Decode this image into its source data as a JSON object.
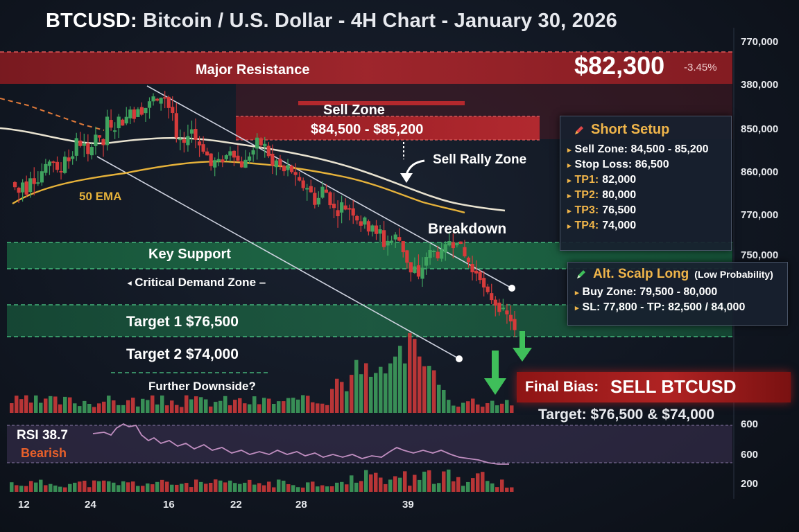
{
  "title": {
    "symbol": "BTCUSD:",
    "rest": "Bitcoin / U.S. Dollar - 4H Chart - January 30, 2026"
  },
  "price": {
    "value": "$82,300",
    "change": "-3.45%"
  },
  "y_axis_labels": [
    "770,000",
    "380,000",
    "850,000",
    "860,000",
    "770,000",
    "750,000",
    "600",
    "600",
    "200"
  ],
  "x_axis_labels": [
    "12",
    "24",
    "16",
    "22",
    "28",
    "39"
  ],
  "zones": {
    "major_resistance": "Major Resistance",
    "sell_zone_title": "Sell Zone",
    "sell_zone_range": "$84,500 - $85,200",
    "sell_rally": "Sell Rally Zone",
    "breakdown": "Breakdown",
    "key_support": "Key Support",
    "critical_demand": "Critical Demand Zone",
    "target1": "Target 1  $76,500",
    "target2": "Target 2  $74,000",
    "further": "Further Downside?",
    "ema": "50 EMA"
  },
  "short_setup": {
    "title": "Short Setup",
    "rows": [
      {
        "label": "Sell Zone:",
        "value": "84,500 - 85,200"
      },
      {
        "label": "Stop Loss:",
        "value": "86,500"
      },
      {
        "label": "TP1:",
        "value": "82,000"
      },
      {
        "label": "TP2:",
        "value": "80,000"
      },
      {
        "label": "TP3:",
        "value": "76,500"
      },
      {
        "label": "TP4:",
        "value": "74,000"
      }
    ]
  },
  "scalp_long": {
    "title": "Alt. Scalp Long",
    "note": "(Low Probability)",
    "rows": [
      "Buy Zone: 79,500 - 80,000",
      "SL: 77,800 - TP: 82,500 / 84,000"
    ]
  },
  "bias": {
    "label": "Final Bias:",
    "value": "SELL BTCUSD",
    "target": "Target: $76,500 & $74,000"
  },
  "rsi": {
    "label": "RSI 38.7",
    "state": "Bearish"
  },
  "colors": {
    "bull": "#3fa35f",
    "bear": "#d63b3b",
    "ema": "#e6b23a",
    "ma": "#e8e2d0",
    "resistance": "#a3222a",
    "support": "#1f6b47",
    "accent": "#f0b54a",
    "rsi": "#c08ec0"
  },
  "chart_data": {
    "type": "candlestick",
    "title": "BTCUSD: Bitcoin / U.S. Dollar - 4H Chart - January 30, 2026",
    "series": [
      {
        "name": "50 EMA",
        "type": "line"
      },
      {
        "name": "RSI 38.7",
        "type": "line"
      }
    ],
    "candles": [
      [
        96,
        95,
        94,
        96,
        94,
        97,
        96,
        96,
        98,
        99,
        100
      ],
      [
        100,
        98,
        98,
        101,
        100,
        101,
        104,
        103,
        103,
        101,
        103
      ],
      [
        105,
        104,
        103,
        108,
        106,
        106,
        108,
        107,
        108,
        110,
        108
      ],
      [
        110,
        109,
        110,
        111,
        112,
        111,
        112,
        112,
        110,
        109,
        104
      ],
      [
        104,
        103,
        105,
        106,
        104,
        103,
        102,
        101,
        99,
        100,
        100
      ],
      [
        100,
        101,
        102,
        101,
        100,
        99,
        100,
        101,
        102,
        104,
        103
      ],
      [
        103,
        101,
        99,
        100,
        99,
        98,
        99,
        98,
        97,
        96,
        95
      ],
      [
        95,
        94,
        92,
        93,
        95,
        94,
        92,
        91,
        90,
        92,
        91
      ],
      [
        91,
        90,
        89,
        88,
        89,
        87,
        88,
        86,
        87,
        84,
        85
      ],
      [
        85,
        86,
        85,
        83,
        81,
        79,
        80,
        78,
        80,
        82,
        83
      ],
      [
        83,
        82,
        83,
        84,
        85,
        84,
        85,
        84,
        82,
        81,
        79
      ],
      [
        79,
        78,
        76,
        75,
        74,
        73,
        72,
        72,
        71,
        70,
        68
      ]
    ]
  }
}
